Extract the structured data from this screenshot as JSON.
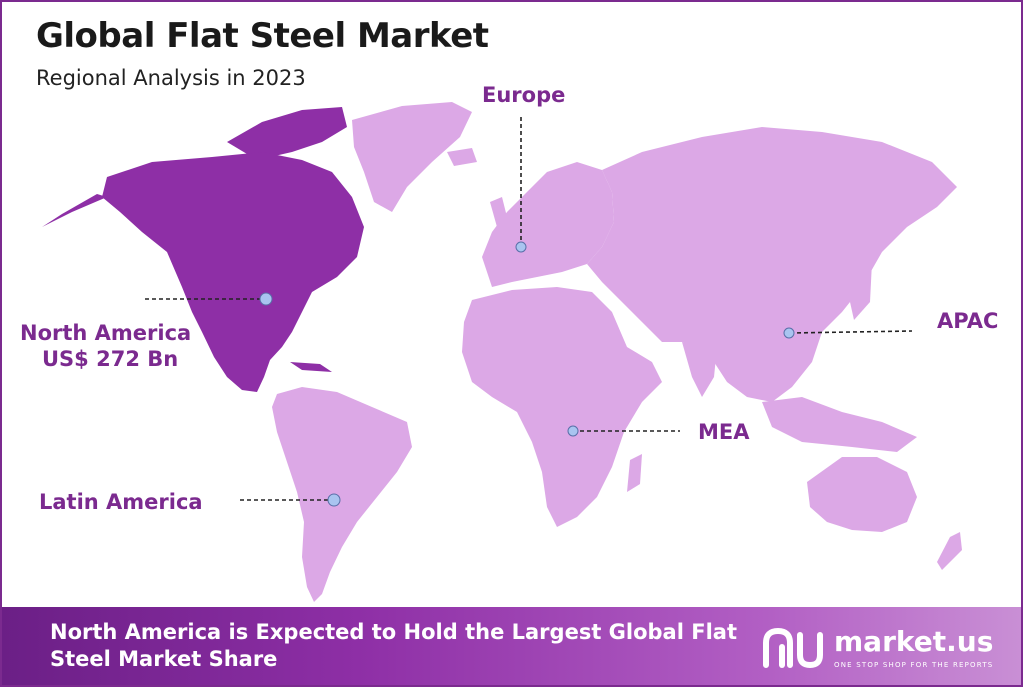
{
  "header": {
    "title": "Global Flat Steel Market",
    "subtitle": "Regional Analysis in 2023"
  },
  "regions": [
    {
      "key": "north-america",
      "name": "North America",
      "value": "US$ 272 Bn",
      "highlighted": true
    },
    {
      "key": "europe",
      "name": "Europe",
      "value": "",
      "highlighted": false
    },
    {
      "key": "apac",
      "name": "APAC",
      "value": "",
      "highlighted": false
    },
    {
      "key": "mea",
      "name": "MEA",
      "value": "",
      "highlighted": false
    },
    {
      "key": "latin-america",
      "name": "Latin America",
      "value": "",
      "highlighted": false
    }
  ],
  "colors": {
    "highlight": "#8e2fa6",
    "land": "#dca8e6",
    "accent": "#7b2a8f",
    "marker": "#a9c4f0"
  },
  "footer": {
    "text": "North America is Expected to Hold the Largest Global Flat Steel Market Share",
    "brand": "market.us",
    "tagline": "ONE STOP SHOP FOR THE REPORTS",
    "logo_icon": "market-us-logo-icon"
  }
}
